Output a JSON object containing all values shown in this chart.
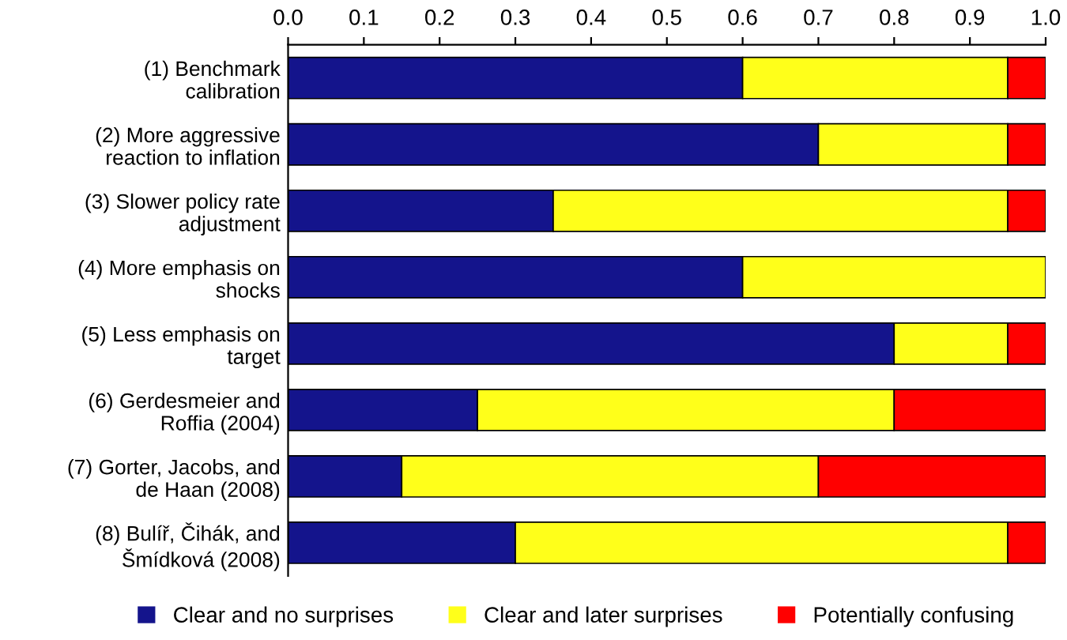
{
  "chart_data": {
    "type": "bar",
    "orientation": "horizontal",
    "stacked": true,
    "categories": [
      "(1) Benchmark\ncalibration",
      "(2) More aggressive\nreaction to inflation",
      "(3) Slower policy rate\nadjustment",
      "(4) More emphasis on\nshocks",
      "(5) Less emphasis on\ntarget",
      "(6) Gerdesmeier and\nRoffia (2004)",
      "(7) Gorter, Jacobs, and\nde Haan (2008)",
      "(8) Bulíř, Čihák, and\nŠmídková (2008)"
    ],
    "series": [
      {
        "name": "Clear and no surprises",
        "color": "#14148c",
        "values": [
          0.6,
          0.7,
          0.35,
          0.6,
          0.8,
          0.25,
          0.15,
          0.3
        ]
      },
      {
        "name": "Clear and later surprises",
        "color": "#ffff1a",
        "values": [
          0.35,
          0.25,
          0.6,
          0.4,
          0.15,
          0.55,
          0.55,
          0.65
        ]
      },
      {
        "name": "Potentially confusing",
        "color": "#ff0000",
        "values": [
          0.05,
          0.05,
          0.05,
          0,
          0.05,
          0.2,
          0.3,
          0.05
        ]
      }
    ],
    "xlim": [
      0.0,
      1.0
    ],
    "xticks": [
      {
        "value": 0,
        "label": "0.0"
      },
      {
        "value": 0.1,
        "label": "0.1"
      },
      {
        "value": 0.2,
        "label": "0.2"
      },
      {
        "value": 0.3,
        "label": "0.3"
      },
      {
        "value": 0.4,
        "label": "0.4"
      },
      {
        "value": 0.5,
        "label": "0.5"
      },
      {
        "value": 0.6,
        "label": "0.6"
      },
      {
        "value": 0.7,
        "label": "0.7"
      },
      {
        "value": 0.8,
        "label": "0.8"
      },
      {
        "value": 0.9,
        "label": "0.9"
      },
      {
        "value": 1,
        "label": "1.0"
      }
    ],
    "legend": "bottom",
    "grid": false
  }
}
